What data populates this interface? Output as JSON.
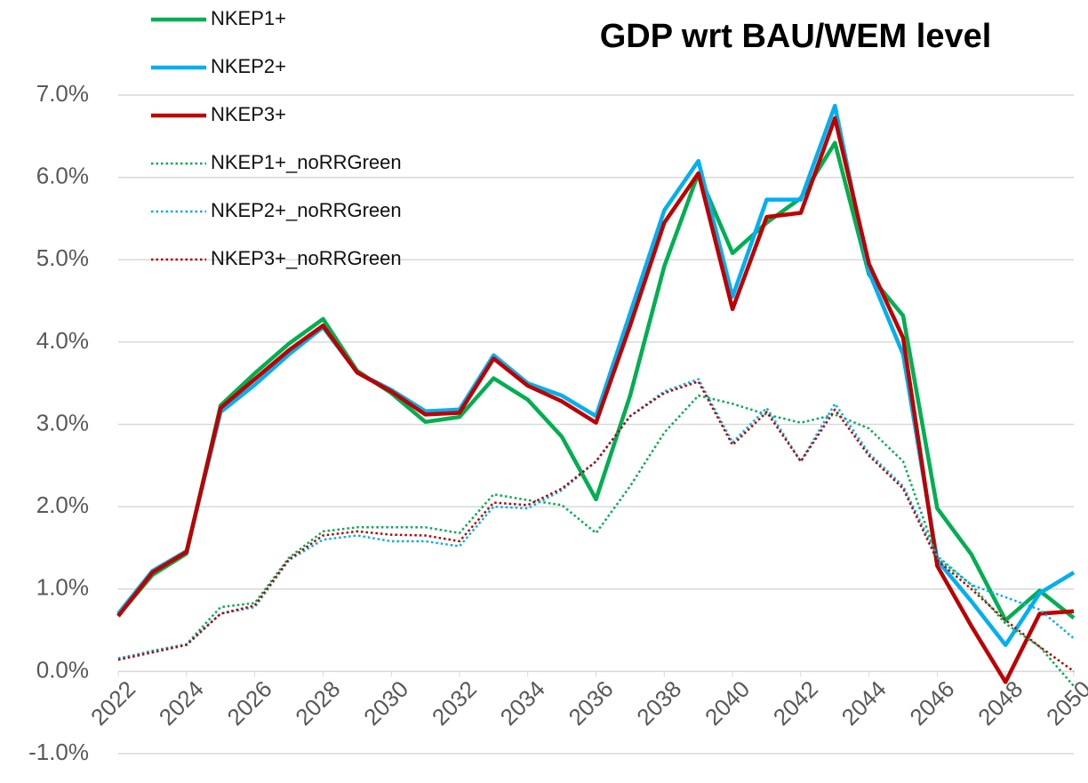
{
  "chart_data": {
    "type": "line",
    "title": "GDP wrt BAU/WEM level",
    "x": [
      2022,
      2023,
      2024,
      2025,
      2026,
      2027,
      2028,
      2029,
      2030,
      2031,
      2032,
      2033,
      2034,
      2035,
      2036,
      2037,
      2038,
      2039,
      2040,
      2041,
      2042,
      2043,
      2044,
      2045,
      2046,
      2047,
      2048,
      2049,
      2050
    ],
    "xlim": [
      2022,
      2050
    ],
    "xticks": [
      2022,
      2024,
      2026,
      2028,
      2030,
      2032,
      2034,
      2036,
      2038,
      2040,
      2042,
      2044,
      2046,
      2048,
      2050
    ],
    "ylim": [
      -1,
      7
    ],
    "yticks": [
      {
        "value": -1,
        "label": "-1.0%"
      },
      {
        "value": 0,
        "label": "0.0%"
      },
      {
        "value": 1,
        "label": "1.0%"
      },
      {
        "value": 2,
        "label": "2.0%"
      },
      {
        "value": 3,
        "label": "3.0%"
      },
      {
        "value": 4,
        "label": "4.0%"
      },
      {
        "value": 5,
        "label": "5.0%"
      },
      {
        "value": 6,
        "label": "6.0%"
      },
      {
        "value": 7,
        "label": "7.0%"
      }
    ],
    "grid": true,
    "legend": "top-left",
    "series": [
      {
        "name": "NKEP1+",
        "color": "#00b050",
        "linestyle": "solid",
        "values": [
          0.68,
          1.17,
          1.43,
          3.23,
          3.62,
          3.98,
          4.28,
          3.65,
          3.38,
          3.03,
          3.09,
          3.56,
          3.3,
          2.85,
          2.09,
          3.35,
          4.92,
          6.05,
          5.08,
          5.45,
          5.75,
          6.42,
          4.82,
          4.32,
          1.98,
          1.42,
          0.62,
          0.98,
          0.65
        ]
      },
      {
        "name": "NKEP2+",
        "color": "#00b0f0",
        "linestyle": "solid",
        "values": [
          0.7,
          1.22,
          1.46,
          3.15,
          3.48,
          3.85,
          4.18,
          3.63,
          3.42,
          3.16,
          3.18,
          3.84,
          3.5,
          3.35,
          3.1,
          4.35,
          5.6,
          6.2,
          4.55,
          5.73,
          5.73,
          6.87,
          4.85,
          3.85,
          1.35,
          0.85,
          0.32,
          0.95,
          1.2
        ]
      },
      {
        "name": "NKEP3+",
        "color": "#c00000",
        "linestyle": "solid",
        "values": [
          0.67,
          1.2,
          1.45,
          3.2,
          3.55,
          3.9,
          4.2,
          3.63,
          3.4,
          3.12,
          3.14,
          3.8,
          3.47,
          3.28,
          3.02,
          4.2,
          5.45,
          6.05,
          4.4,
          5.52,
          5.57,
          6.72,
          4.95,
          4.05,
          1.28,
          0.55,
          -0.13,
          0.7,
          0.73
        ]
      },
      {
        "name": "NKEP1+_noRRGreen",
        "color": "#00b050",
        "linestyle": "dotted",
        "values": [
          0.15,
          0.25,
          0.33,
          0.78,
          0.83,
          1.38,
          1.7,
          1.75,
          1.75,
          1.75,
          1.68,
          2.15,
          2.08,
          2.02,
          1.68,
          2.25,
          2.9,
          3.35,
          3.25,
          3.12,
          3.02,
          3.12,
          2.95,
          2.55,
          1.38,
          1.05,
          0.58,
          0.3,
          -0.18
        ]
      },
      {
        "name": "NKEP2+_noRRGreen",
        "color": "#00b0f0",
        "linestyle": "dotted",
        "values": [
          0.16,
          0.24,
          0.33,
          0.7,
          0.78,
          1.35,
          1.6,
          1.65,
          1.58,
          1.58,
          1.52,
          2.0,
          1.98,
          2.2,
          2.55,
          3.1,
          3.4,
          3.55,
          2.78,
          3.2,
          2.55,
          3.25,
          2.65,
          2.25,
          1.4,
          1.05,
          0.9,
          0.75,
          0.4
        ]
      },
      {
        "name": "NKEP3+_noRRGreen",
        "color": "#c00000",
        "linestyle": "dotted",
        "values": [
          0.14,
          0.23,
          0.32,
          0.7,
          0.8,
          1.36,
          1.65,
          1.7,
          1.66,
          1.65,
          1.58,
          2.05,
          2.02,
          2.22,
          2.55,
          3.1,
          3.38,
          3.52,
          2.75,
          3.15,
          2.55,
          3.18,
          2.62,
          2.22,
          1.35,
          1.0,
          0.62,
          0.3,
          0.0
        ]
      }
    ]
  }
}
